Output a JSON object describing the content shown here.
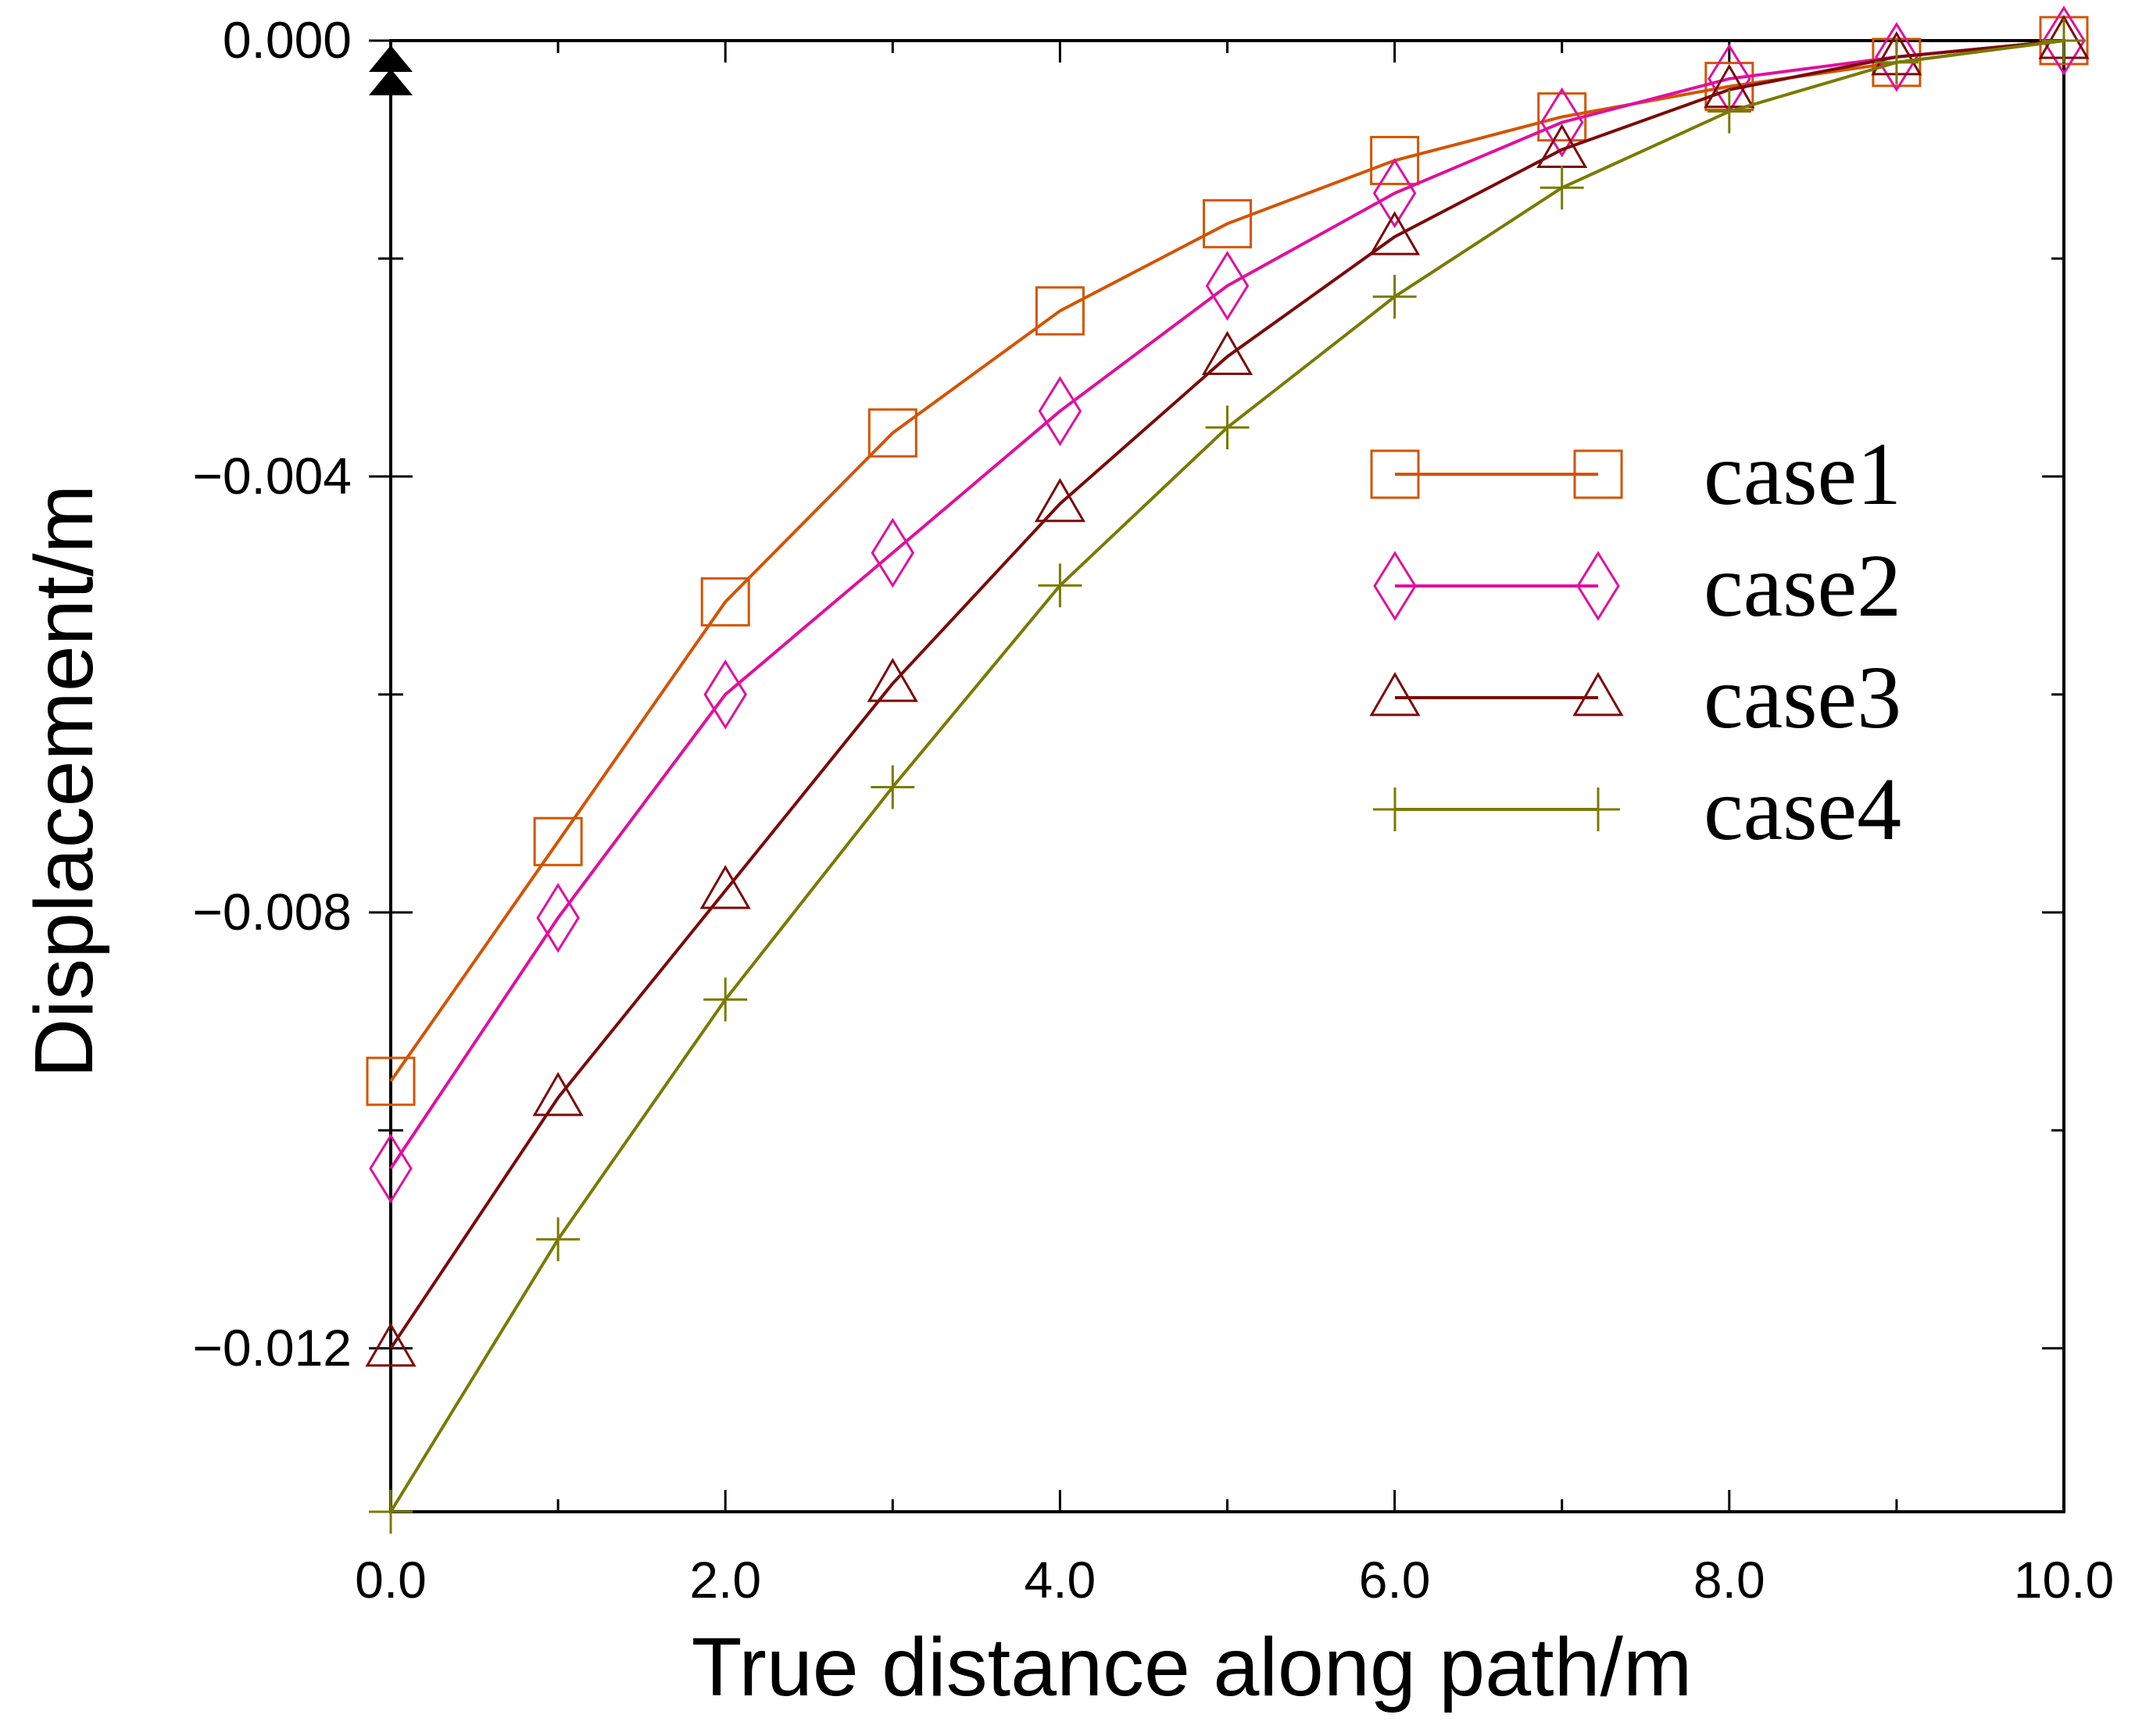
{
  "chart_data": {
    "type": "line",
    "title": "",
    "xlabel": "True distance along path/m",
    "ylabel": "Displacement/m",
    "xlim": [
      0,
      10
    ],
    "ylim": [
      -0.0135,
      0
    ],
    "x": [
      0,
      1,
      2,
      3,
      4,
      5,
      6,
      7,
      8,
      9,
      10
    ],
    "x_ticks": [
      0,
      2,
      4,
      6,
      8,
      10
    ],
    "x_tick_labels": [
      "0.0",
      "2.0",
      "4.0",
      "6.0",
      "8.0",
      "10.0"
    ],
    "y_ticks": [
      0,
      -0.004,
      -0.008,
      -0.012
    ],
    "y_tick_labels": [
      "0.000",
      "−0.004",
      "−0.008",
      "−0.012"
    ],
    "legend_position": "right",
    "grid": false,
    "series": [
      {
        "name": "case1",
        "marker": "square",
        "color": "#d35400",
        "values": [
          -0.00955,
          -0.00735,
          -0.00515,
          -0.0036,
          -0.00248,
          -0.00168,
          -0.0011,
          -0.0007,
          -0.00042,
          -0.0002,
          0.0
        ]
      },
      {
        "name": "case2",
        "marker": "diamond",
        "color": "#e0109f",
        "values": [
          -0.01035,
          -0.00805,
          -0.006,
          -0.0047,
          -0.0034,
          -0.00225,
          -0.0014,
          -0.00075,
          -0.00035,
          -0.00015,
          0.0
        ]
      },
      {
        "name": "case3",
        "marker": "triangle",
        "color": "#7b0a0a",
        "values": [
          -0.012,
          -0.0097,
          -0.0078,
          -0.0059,
          -0.00425,
          -0.0029,
          -0.0018,
          -0.001,
          -0.00045,
          -0.00015,
          0.0
        ]
      },
      {
        "name": "case4",
        "marker": "plus",
        "color": "#7a7a00",
        "values": [
          -0.0135,
          -0.011,
          -0.0088,
          -0.00685,
          -0.005,
          -0.00355,
          -0.00235,
          -0.00135,
          -0.00065,
          -0.0002,
          0.0
        ]
      }
    ]
  }
}
